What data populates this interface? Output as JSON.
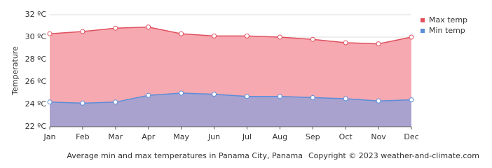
{
  "chart_data": {
    "type": "area",
    "y_label": "Temperature",
    "caption": "Average min and max temperatures in Panama City, Panama",
    "copyright": "Copyright © 2023  weather-and-climate.com",
    "categories": [
      "Jan",
      "Feb",
      "Mar",
      "Apr",
      "May",
      "Jun",
      "Jul",
      "Aug",
      "Sep",
      "Oct",
      "Nov",
      "Dec"
    ],
    "series": [
      {
        "name": "Max temp",
        "color": "#e0505e",
        "fill": "#f6a9b0",
        "values": [
          30.3,
          30.5,
          30.8,
          30.9,
          30.3,
          30.1,
          30.1,
          30.0,
          29.8,
          29.5,
          29.4,
          30.0
        ]
      },
      {
        "name": "Min temp",
        "color": "#5b8dd9",
        "fill": "#a9a2cf",
        "values": [
          24.2,
          24.1,
          24.2,
          24.8,
          25.0,
          24.9,
          24.7,
          24.7,
          24.6,
          24.5,
          24.3,
          24.4
        ]
      }
    ],
    "ylim": [
      22,
      32
    ],
    "yticks": [
      {
        "value": 22,
        "label": "22 ºC"
      },
      {
        "value": 24,
        "label": "24 ºC"
      },
      {
        "value": 26,
        "label": "26 ºC"
      },
      {
        "value": 28,
        "label": "28 ºC"
      },
      {
        "value": 30,
        "label": "30 ºC"
      },
      {
        "value": 32,
        "label": "32 ºC"
      }
    ],
    "grid": true,
    "legend": "top-right"
  }
}
